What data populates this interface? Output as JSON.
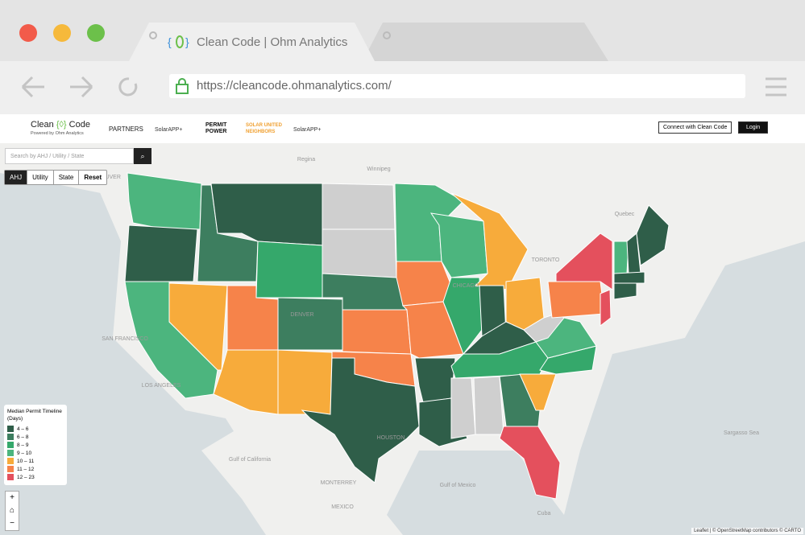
{
  "browser": {
    "tab_title": "Clean Code | Ohm Analytics",
    "url": "https://cleancode.ohmanalytics.com/"
  },
  "header": {
    "logo_left": "Clean",
    "logo_right": "Code",
    "tagline": "Powered by Ohm Analytics",
    "partners_label": "PARTNERS",
    "partners": [
      "SolarAPP+",
      "PERMIT POWER",
      "SOLAR UNITED NEIGHBORS",
      "SolarAPP+"
    ],
    "buttons": [
      "Connect with Clean Code",
      "Login"
    ]
  },
  "search": {
    "placeholder": "Search by AHJ / Utility / State"
  },
  "toggles": [
    "AHJ",
    "Utility",
    "State",
    "Reset"
  ],
  "legend": {
    "title": "Median Permit Timeline (Days)",
    "items": [
      "4 – 6",
      "6 – 8",
      "8 – 9",
      "9 – 10",
      "10 – 11",
      "11 – 12",
      "12 – 23"
    ]
  },
  "zoom": [
    "+",
    "−"
  ],
  "map_labels": [
    "VANCOUVER",
    "Regina",
    "Winnipeg",
    "Quebec",
    "TORONTO",
    "SAN FRANCISCO",
    "LOS ANGELES",
    "Gulf of California",
    "MONTERREY",
    "MEXICO",
    "Gulf of Mexico",
    "Sargasso Sea",
    "Cuba",
    "HOUSTON",
    "DENVER",
    "CHICAGO"
  ],
  "attribution": "Leaflet | © OpenStreetMap contributors © CARTO"
}
